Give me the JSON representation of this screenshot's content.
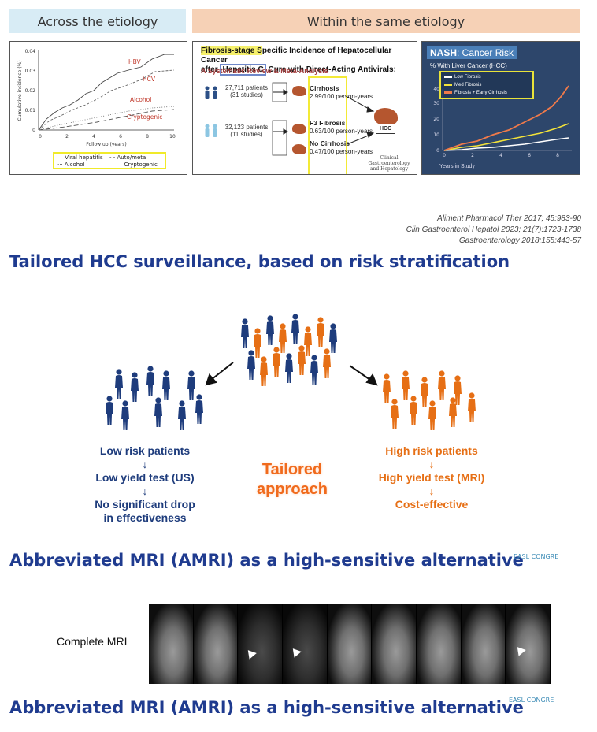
{
  "headers": {
    "left": "Across the etiology",
    "right": "Within the same etiology"
  },
  "panel1": {
    "ylabel": "Cumulative incidence (%)",
    "xlabel": "Follow up (years)",
    "yticks": [
      "0",
      "0.01",
      "0.02",
      "0.03",
      "0.04"
    ],
    "xticks": [
      "0",
      "2",
      "4",
      "6",
      "8",
      "10"
    ],
    "curve_labels": [
      "HBV",
      "HCV",
      "Alcohol",
      "Cryptogenic"
    ],
    "legend": [
      "Viral hepatitis",
      "Auto/meta",
      "Alcohol",
      "Cryptogenic"
    ],
    "label_color": "#c0392b",
    "legend_border_color": "#f0ea2a"
  },
  "panel2": {
    "title_line1_hl": "Fibrosis-stage S",
    "title_line1_rest": "pecific Incidence of Hepatocellular Cancer",
    "title_line2_pre": "after ",
    "title_line2_box": "Hepatitis C",
    "title_line2_rest": " Cure with Direct-Acting Antivirals:",
    "subtitle": "A Systematic Review & Meta-Analysis",
    "cohort1_patients": "27,711 patients",
    "cohort1_studies": "(31 studies)",
    "cohort2_patients": "32,123 patients",
    "cohort2_studies": "(11 studies)",
    "cirrhosis_label": "Cirrhosis",
    "cirrhosis_rate": "2.99/100 person-years",
    "f3_label": "F3 Fibrosis",
    "f3_rate": "0.63/100 person-years",
    "nocirr_label": "No Cirrhosis",
    "nocirr_rate": "0.47/100 person-years",
    "hcc_label": "HCC",
    "journal_line1": "Clinical Gastroenterology",
    "journal_line2": "and Hepatology"
  },
  "panel3": {
    "title_bold": "NASH",
    "title_rest": ": Cancer Risk",
    "subtitle": "% With Liver Cancer (HCC)",
    "legend": [
      "Low Fibrosis",
      "Med Fibrosis",
      "Fibrosis + Early Cirrhosis"
    ],
    "colors": [
      "#ffffff",
      "#f3e33a",
      "#f07a4a"
    ],
    "yticks": [
      "0",
      "10",
      "20",
      "30",
      "40"
    ],
    "xticks": [
      "0",
      "2",
      "4",
      "6",
      "8"
    ],
    "xlabel": "Years in Study"
  },
  "citations": [
    "Aliment Pharmacol Ther 2017; 45:983-90",
    "Clin Gastroenterol Hepatol 2023; 21(7):1723-1738",
    "Gastroenterology 2018;155:443-57"
  ],
  "main_title": "Tailored HCC surveillance, based on risk stratification",
  "diagram": {
    "low_risk": "Low risk patients",
    "low_test": "Low yield test (US)",
    "low_outcome_1": "No significant drop",
    "low_outcome_2": "in effectiveness",
    "high_risk": "High risk patients",
    "high_test": "High yield test (MRI)",
    "high_outcome": "Cost-effective",
    "center_1": "Tailored",
    "center_2": "approach",
    "arrow_glyph": "↓",
    "blue": "#1e3c7c",
    "orange": "#e66f15"
  },
  "amri_title_1": "Abbreviated MRI (AMRI) as a high-sensitive alternative",
  "easl_1": "EASL CONGRE",
  "mri_label": "Complete MRI",
  "amri_title_2": "Abbreviated MRI (AMRI) as a high-sensitive alternative",
  "easl_2": "EASL CONGRE"
}
